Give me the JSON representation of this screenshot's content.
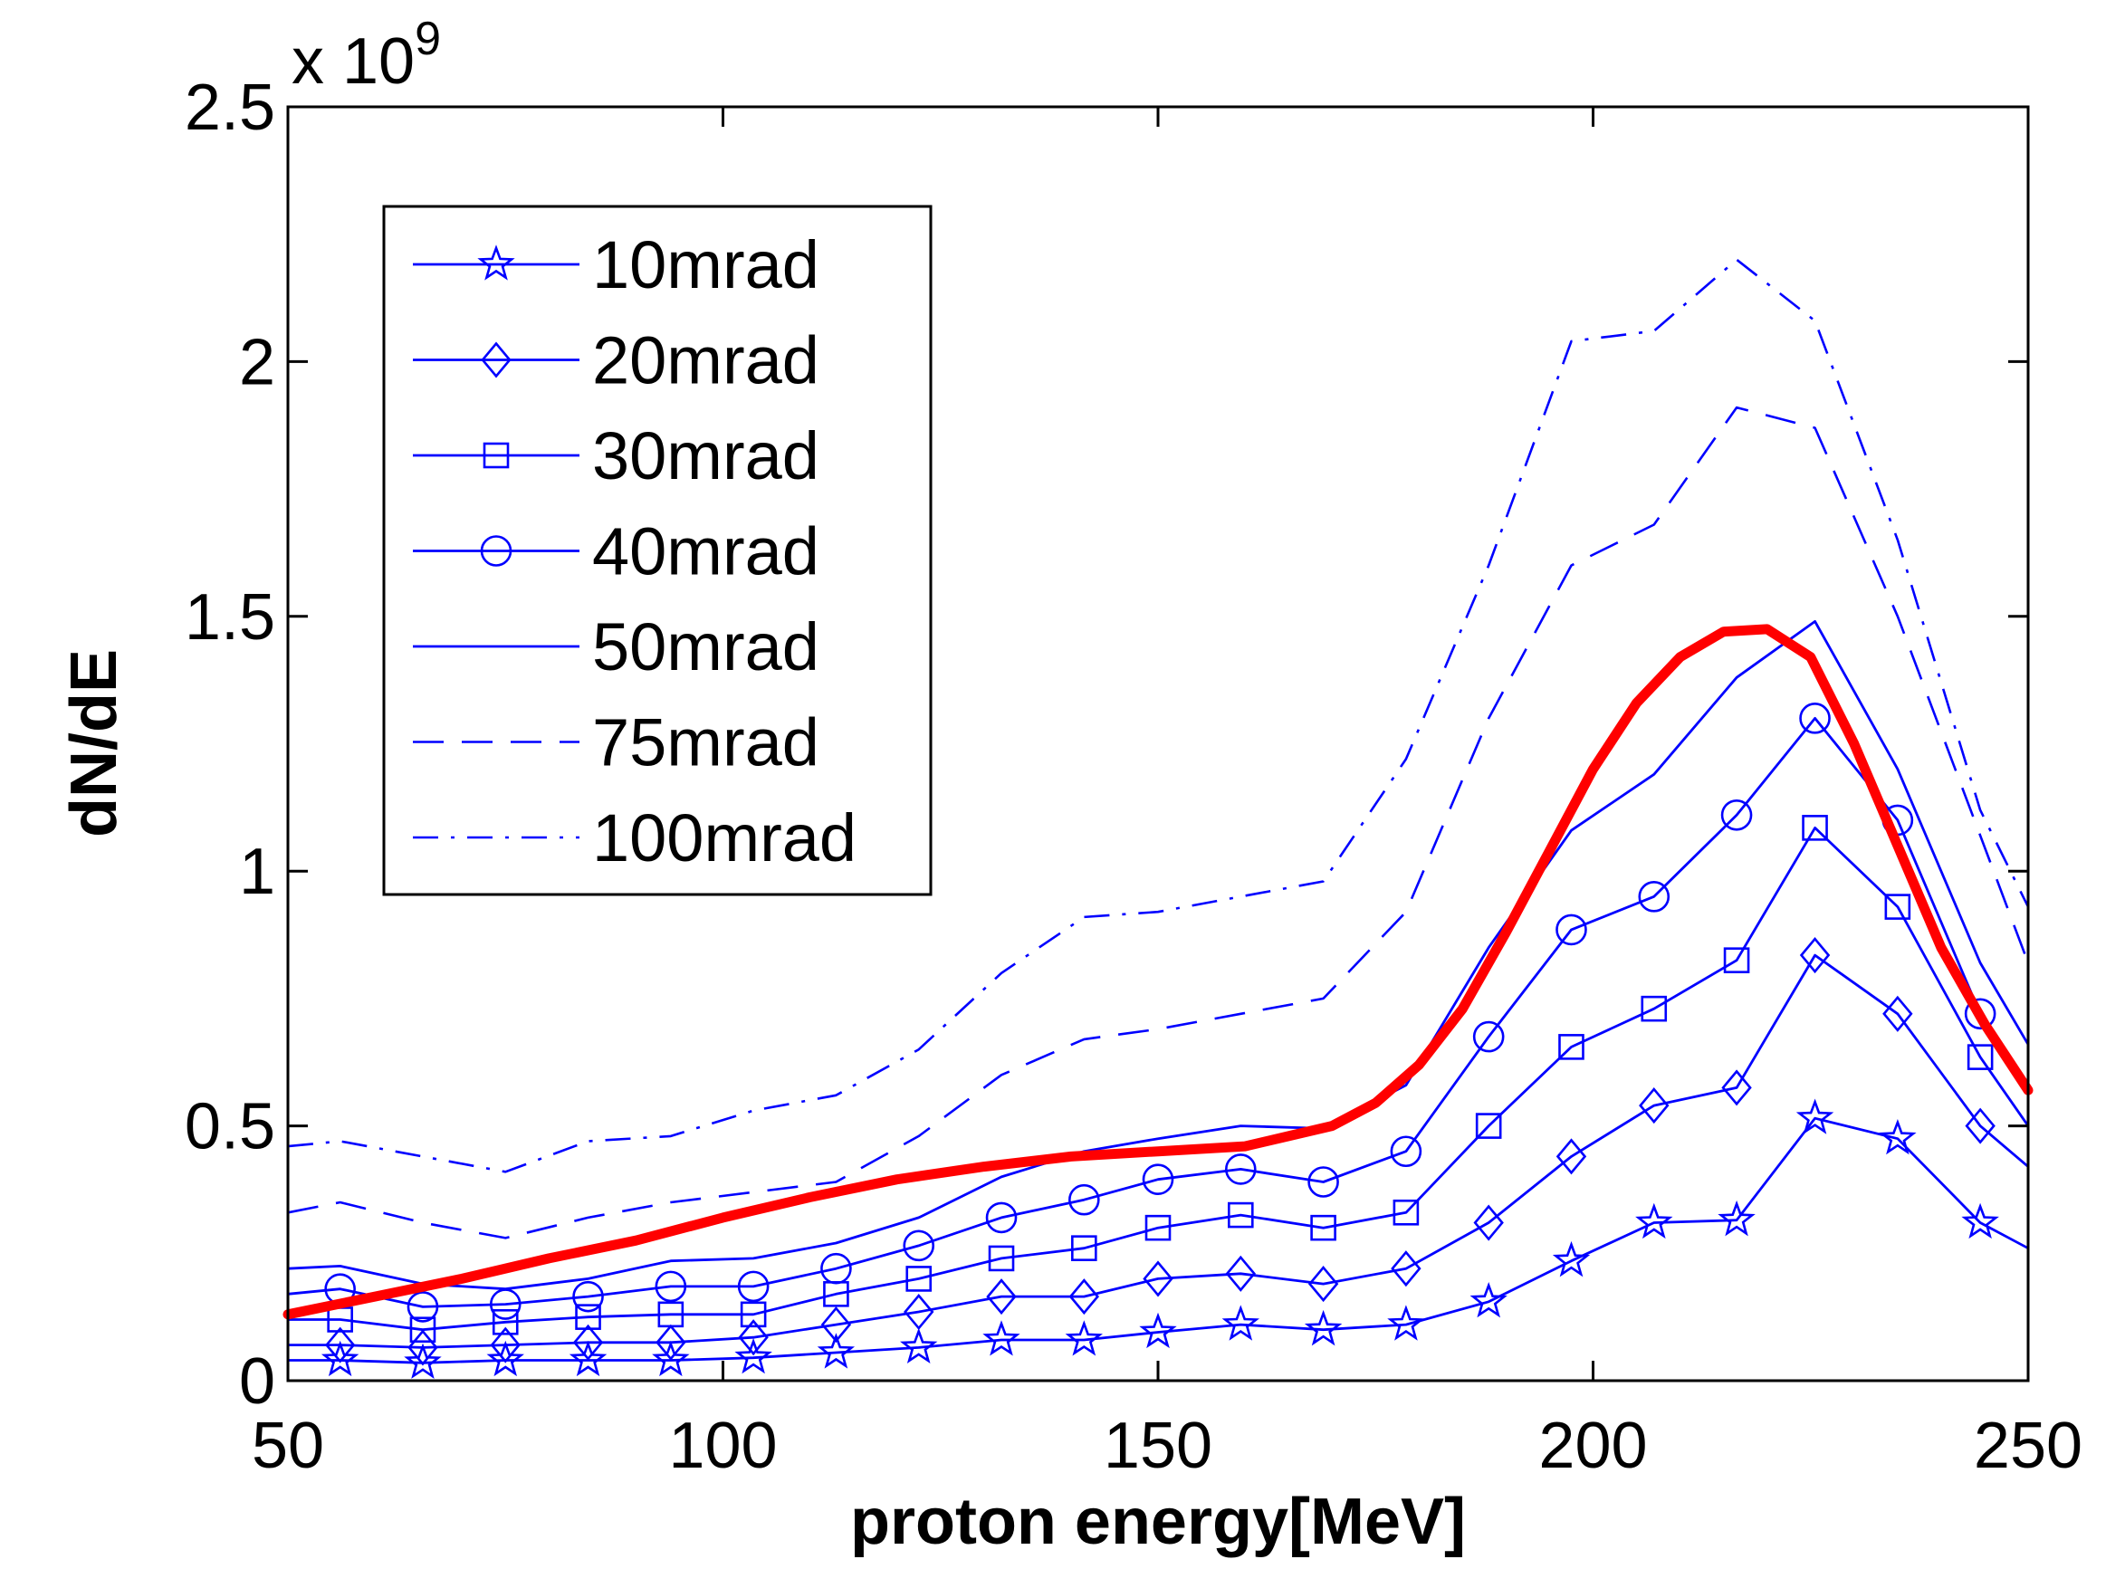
{
  "chart_data": {
    "type": "line",
    "title": "",
    "xlabel": "proton energy[MeV]",
    "ylabel": "dN/dE",
    "y_multiplier_label": "x 10",
    "y_multiplier_exponent": "9",
    "xlim": [
      50,
      250
    ],
    "ylim": [
      0,
      2.5
    ],
    "x_ticks": [
      "50",
      "100",
      "150",
      "200",
      "250"
    ],
    "y_ticks": [
      "0",
      "0.5",
      "1",
      "1.5",
      "2",
      "2.5"
    ],
    "x_tick_values": [
      50,
      100,
      150,
      200,
      250
    ],
    "y_tick_values": [
      0,
      0.5,
      1,
      1.5,
      2,
      2.5
    ],
    "grid": false,
    "legend_position": "top-left",
    "x": [
      50,
      56,
      65.5,
      75,
      84.5,
      94,
      103.5,
      113,
      122.5,
      132,
      141.5,
      150,
      159.5,
      169,
      178.5,
      188,
      197.5,
      207,
      216.5,
      225.5,
      235,
      244.5,
      250
    ],
    "series": [
      {
        "name": "10mrad",
        "style": "solid-star",
        "values": [
          0.04,
          0.04,
          0.035,
          0.04,
          0.04,
          0.04,
          0.045,
          0.055,
          0.065,
          0.08,
          0.08,
          0.095,
          0.11,
          0.1,
          0.11,
          0.155,
          0.235,
          0.31,
          0.315,
          0.515,
          0.475,
          0.31,
          0.26
        ]
      },
      {
        "name": "20mrad",
        "style": "solid-diamond",
        "values": [
          0.07,
          0.07,
          0.065,
          0.07,
          0.075,
          0.075,
          0.085,
          0.11,
          0.135,
          0.165,
          0.165,
          0.2,
          0.21,
          0.19,
          0.22,
          0.31,
          0.44,
          0.54,
          0.575,
          0.835,
          0.72,
          0.5,
          0.42
        ]
      },
      {
        "name": "30mrad",
        "style": "solid-square",
        "values": [
          0.12,
          0.12,
          0.1,
          0.115,
          0.125,
          0.13,
          0.13,
          0.17,
          0.2,
          0.24,
          0.26,
          0.3,
          0.325,
          0.3,
          0.33,
          0.5,
          0.655,
          0.73,
          0.825,
          1.085,
          0.93,
          0.635,
          0.5
        ]
      },
      {
        "name": "40mrad",
        "style": "solid-circle",
        "values": [
          0.17,
          0.18,
          0.145,
          0.15,
          0.165,
          0.185,
          0.185,
          0.22,
          0.265,
          0.32,
          0.355,
          0.395,
          0.415,
          0.39,
          0.45,
          0.675,
          0.885,
          0.95,
          1.11,
          1.3,
          1.1,
          0.72,
          0.58
        ]
      },
      {
        "name": "50mrad",
        "style": "solid",
        "values": [
          0.22,
          0.225,
          0.19,
          0.18,
          0.2,
          0.235,
          0.24,
          0.27,
          0.32,
          0.4,
          0.45,
          0.475,
          0.5,
          0.495,
          0.58,
          0.85,
          1.08,
          1.19,
          1.38,
          1.49,
          1.2,
          0.82,
          0.66
        ]
      },
      {
        "name": "75mrad",
        "style": "dashed",
        "values": [
          0.33,
          0.35,
          0.31,
          0.28,
          0.32,
          0.35,
          0.37,
          0.39,
          0.48,
          0.6,
          0.67,
          0.69,
          0.72,
          0.75,
          0.92,
          1.3,
          1.6,
          1.68,
          1.91,
          1.87,
          1.5,
          1.07,
          0.82
        ]
      },
      {
        "name": "100mrad",
        "style": "dashdot",
        "values": [
          0.46,
          0.47,
          0.44,
          0.41,
          0.47,
          0.48,
          0.53,
          0.56,
          0.65,
          0.8,
          0.91,
          0.92,
          0.95,
          0.98,
          1.22,
          1.6,
          2.04,
          2.06,
          2.2,
          2.08,
          1.65,
          1.12,
          0.93
        ]
      }
    ],
    "highlight_curve": {
      "name": "",
      "color": "#ff0000",
      "x": [
        50,
        60,
        70,
        80,
        90,
        100,
        110,
        120,
        130,
        140,
        150,
        160,
        165,
        170,
        175,
        180,
        185,
        190,
        195,
        200,
        205,
        210,
        215,
        220,
        225,
        230,
        235,
        240,
        245,
        250
      ],
      "values": [
        0.13,
        0.165,
        0.2,
        0.24,
        0.275,
        0.32,
        0.36,
        0.395,
        0.42,
        0.44,
        0.45,
        0.46,
        0.48,
        0.5,
        0.545,
        0.62,
        0.73,
        0.88,
        1.04,
        1.2,
        1.33,
        1.42,
        1.47,
        1.475,
        1.42,
        1.25,
        1.05,
        0.85,
        0.7,
        0.57
      ]
    },
    "colors": {
      "series": "#0000ff",
      "highlight": "#ff0000",
      "axes": "#000000"
    }
  }
}
